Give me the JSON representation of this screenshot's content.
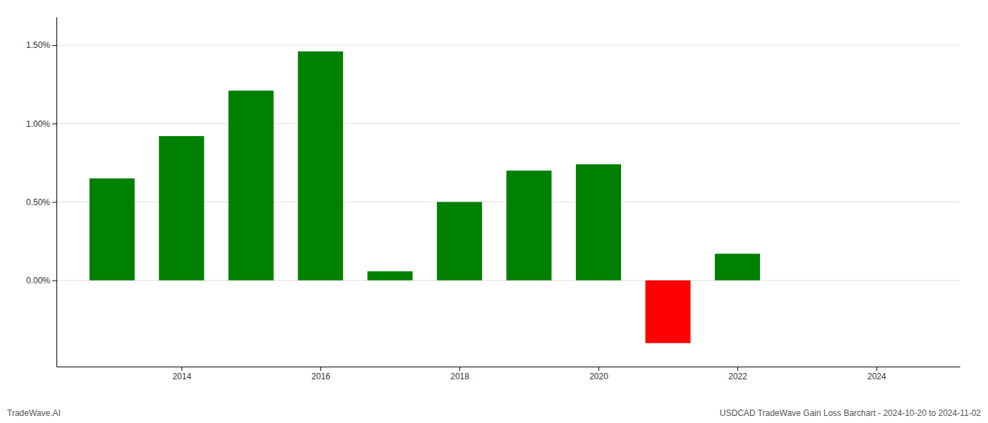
{
  "chart_data": {
    "type": "bar",
    "x": [
      2013,
      2014,
      2015,
      2016,
      2017,
      2018,
      2019,
      2020,
      2021,
      2022
    ],
    "values": [
      0.0065,
      0.0092,
      0.0121,
      0.0146,
      0.00058,
      0.005,
      0.007,
      0.0074,
      -0.004,
      0.0017
    ],
    "colors": [
      "#008000",
      "#008000",
      "#008000",
      "#008000",
      "#008000",
      "#008000",
      "#008000",
      "#008000",
      "#ff0000",
      "#008000"
    ],
    "xlim": [
      2012.2,
      2025.2
    ],
    "xticks": [
      2014,
      2016,
      2018,
      2020,
      2022,
      2024
    ],
    "ylim": [
      -0.0055,
      0.0168
    ],
    "yticks": [
      {
        "value": 0.0,
        "label": "0.00%"
      },
      {
        "value": 0.005,
        "label": "0.50%"
      },
      {
        "value": 0.01,
        "label": "1.00%"
      },
      {
        "value": 0.015,
        "label": "1.50%"
      }
    ],
    "grid": true,
    "annotations": [
      "TradeWave.AI",
      "USDCAD TradeWave Gain Loss Barchart - 2024-10-20 to 2024-11-02"
    ]
  }
}
